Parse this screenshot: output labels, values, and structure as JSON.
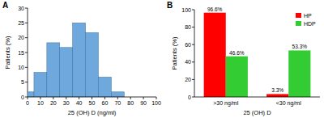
{
  "chart_data": [
    {
      "type": "histogram",
      "title": "A",
      "bins": [
        0,
        5,
        15,
        25,
        35,
        45,
        55,
        65,
        75
      ],
      "values": [
        1.7,
        8.3,
        18.3,
        16.7,
        25,
        21.7,
        6.7,
        1.7
      ],
      "color": "#6fa8dc",
      "x_label": "25 (OH) D (ng/ml)",
      "y_label": "Patients (%)",
      "xlim": [
        0,
        100
      ],
      "xticks": [
        0,
        10,
        20,
        30,
        40,
        50,
        60,
        70,
        80,
        90,
        100
      ],
      "ylim": [
        0,
        30
      ],
      "yticks": [
        0,
        5,
        10,
        15,
        20,
        25,
        30
      ]
    },
    {
      "type": "bar",
      "title": "B",
      "categories": [
        ">30 ng/ml",
        "<30 ng/ml"
      ],
      "series": [
        {
          "name": "HP",
          "color": "#ff0000",
          "values": [
            96.6,
            3.3
          ],
          "value_labels": [
            "96.6%",
            "3.3%"
          ]
        },
        {
          "name": "HDP",
          "color": "#33cc33",
          "values": [
            46.6,
            53.3
          ],
          "value_labels": [
            "46.6%",
            "53.3%"
          ]
        }
      ],
      "x_label": "25 (OH) D",
      "y_label": "Patients (%)",
      "ylim": [
        0,
        100
      ],
      "yticks": [
        0,
        20,
        40,
        60,
        80,
        100
      ],
      "data_labels": true,
      "legend": "upper right"
    }
  ]
}
